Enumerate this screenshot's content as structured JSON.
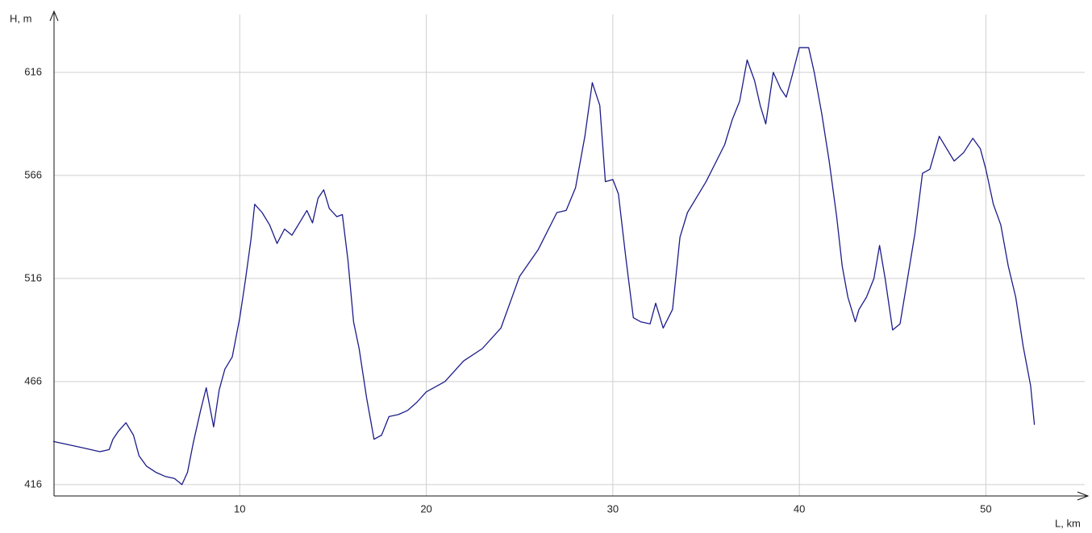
{
  "chart_data": {
    "type": "line",
    "y_label": "H, m",
    "x_label": "L, km",
    "color": "#1c1c8a",
    "grid": true,
    "xlim": [
      0,
      55.3
    ],
    "ylim": [
      410.5,
      643.5
    ],
    "xticks": [
      10,
      20,
      30,
      40,
      50
    ],
    "yticks": [
      416,
      466,
      516,
      566,
      616
    ],
    "x": [
      0,
      0.5,
      1,
      1.5,
      2,
      2.5,
      3,
      3.2,
      3.5,
      3.9,
      4.3,
      4.6,
      5,
      5.5,
      6,
      6.5,
      6.9,
      7.2,
      7.5,
      7.9,
      8.2,
      8.6,
      8.9,
      9.2,
      9.6,
      10,
      10.3,
      10.6,
      10.8,
      11.2,
      11.6,
      12,
      12.4,
      12.8,
      13.2,
      13.6,
      13.9,
      14.2,
      14.5,
      14.8,
      15.2,
      15.5,
      15.8,
      16.1,
      16.4,
      16.8,
      17.2,
      17.6,
      18,
      18.5,
      19,
      19.5,
      20,
      21,
      22,
      23,
      24,
      25,
      26,
      27,
      27.5,
      28,
      28.5,
      28.9,
      29.3,
      29.6,
      30,
      30.3,
      30.7,
      31.1,
      31.5,
      32,
      32.3,
      32.7,
      33.2,
      33.6,
      34,
      35,
      36,
      36.4,
      36.8,
      37.2,
      37.6,
      37.9,
      38.2,
      38.6,
      39,
      39.3,
      39.6,
      40,
      40.5,
      40.8,
      41.2,
      41.6,
      42,
      42.3,
      42.6,
      43,
      43.2,
      43.6,
      44,
      44.3,
      44.6,
      45,
      45.4,
      45.8,
      46.2,
      46.6,
      47,
      47.5,
      47.9,
      48.3,
      48.8,
      49.3,
      49.7,
      50,
      50.4,
      50.8,
      51.2,
      51.6,
      52,
      52.4,
      52.6
    ],
    "values": [
      437,
      436,
      435,
      434,
      433,
      432,
      433,
      438,
      442,
      446,
      440,
      430,
      425,
      422,
      420,
      419,
      416,
      422,
      436,
      452,
      463,
      444,
      462,
      472,
      478,
      497,
      515,
      535,
      552,
      548,
      542,
      533,
      540,
      537,
      543,
      549,
      543,
      555,
      559,
      550,
      546,
      547,
      525,
      495,
      482,
      458,
      438,
      440,
      449,
      450,
      452,
      456,
      461,
      466,
      476,
      482,
      492,
      517,
      530,
      548,
      549,
      560,
      585,
      611,
      600,
      563,
      564,
      557,
      526,
      497,
      495,
      494,
      504,
      492,
      501,
      536,
      548,
      563,
      581,
      593,
      602,
      622,
      612,
      600,
      591,
      616,
      608,
      604,
      614,
      628,
      628,
      616,
      596,
      573,
      546,
      522,
      507,
      495,
      501,
      507,
      516,
      532,
      516,
      491,
      494,
      516,
      538,
      567,
      569,
      585,
      579,
      573,
      577,
      584,
      579,
      569,
      552,
      542,
      522,
      507,
      483,
      464,
      445
    ]
  }
}
